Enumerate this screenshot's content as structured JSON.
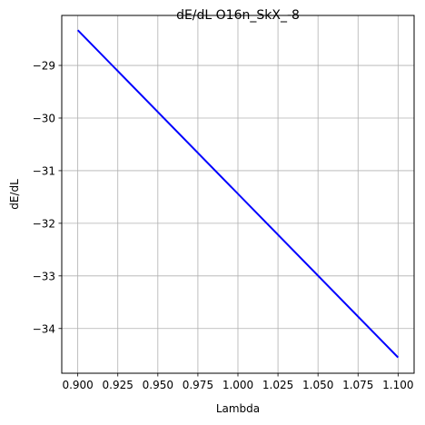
{
  "chart_data": {
    "type": "line",
    "title": "dE/dL O16n_SkX_-8",
    "xlabel": "Lambda",
    "ylabel": "dE/dL",
    "xlim": [
      0.89,
      1.11
    ],
    "ylim": [
      -34.85,
      -28.05
    ],
    "x_ticks": [
      0.9,
      0.925,
      0.95,
      0.975,
      1.0,
      1.025,
      1.05,
      1.075,
      1.1
    ],
    "x_tick_labels": [
      "0.900",
      "0.925",
      "0.950",
      "0.975",
      "1.000",
      "1.025",
      "1.050",
      "1.075",
      "1.100"
    ],
    "y_ticks": [
      -34,
      -33,
      -32,
      -31,
      -30,
      -29
    ],
    "y_tick_labels": [
      "−34",
      "−33",
      "−32",
      "−31",
      "−30",
      "−29"
    ],
    "grid": true,
    "series": [
      {
        "color": "#0000ff",
        "x": [
          0.9,
          1.1
        ],
        "y": [
          -28.33,
          -34.55
        ]
      }
    ]
  }
}
